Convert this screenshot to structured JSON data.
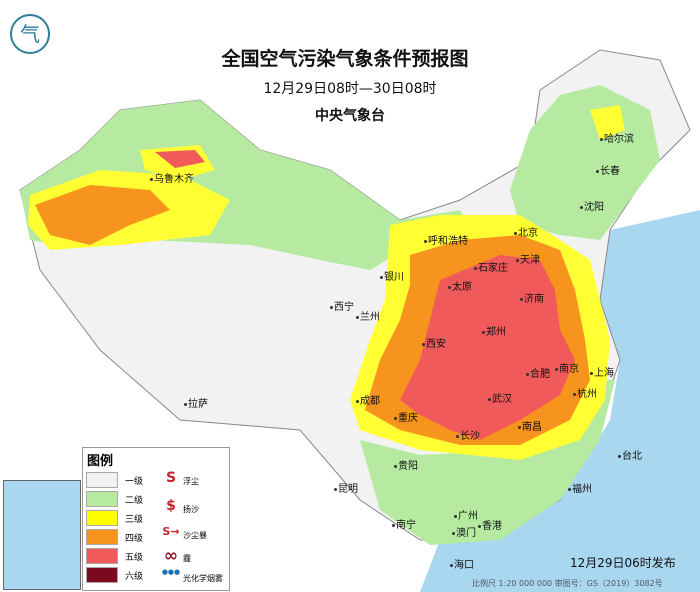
{
  "title": "全国空气污染气象条件预报图",
  "period": "12月29日08时—30日08时",
  "issuer": "中央气象台",
  "issue_time": "12月29日06时发布",
  "scale_text": "比例尺 1:20 000 000    审图号：GS（2019）3082号",
  "colors": {
    "level1": "#f2f2f2",
    "level2": "#b5eaa0",
    "level3": "#ffff00",
    "level4": "#f7941d",
    "level5": "#f15a5a",
    "level6": "#7a0a1e",
    "sea": "#a9d7ef"
  },
  "legend": {
    "title": "图例",
    "levels": [
      "一级",
      "二级",
      "三级",
      "四级",
      "五级",
      "六级"
    ],
    "symbols": [
      {
        "icon": "floating-dust-icon",
        "glyph": "S",
        "label": "浮尘"
      },
      {
        "icon": "blowing-sand-icon",
        "glyph": "$",
        "label": "扬沙"
      },
      {
        "icon": "sandstorm-icon",
        "glyph": "S→",
        "label": "沙尘暴"
      },
      {
        "icon": "haze-icon",
        "glyph": "∞",
        "label": "霾"
      },
      {
        "icon": "photochemical-smog-icon",
        "glyph": "●●●",
        "label": "光化学烟雾"
      }
    ]
  },
  "cities": [
    "乌鲁木齐",
    "哈尔滨",
    "长春",
    "沈阳",
    "呼和浩特",
    "北京",
    "天津",
    "银川",
    "石家庄",
    "太原",
    "济南",
    "西宁",
    "兰州",
    "郑州",
    "西安",
    "南京",
    "合肥",
    "上海",
    "成都",
    "武汉",
    "杭州",
    "重庆",
    "长沙",
    "南昌",
    "拉萨",
    "贵阳",
    "福州",
    "台北",
    "昆明",
    "南宁",
    "广州",
    "澳门",
    "香港",
    "海口"
  ]
}
